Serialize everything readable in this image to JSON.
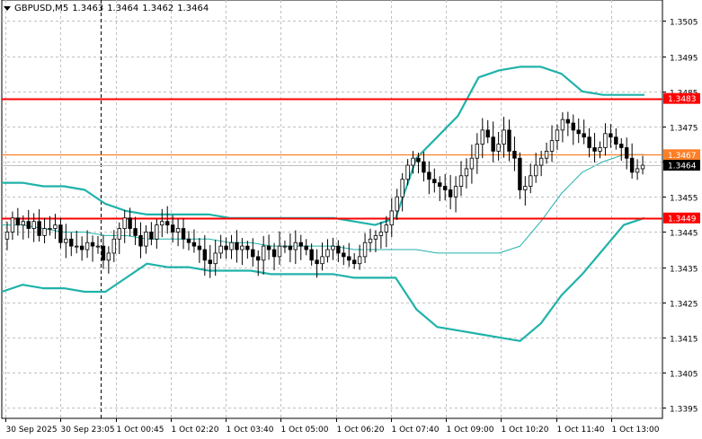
{
  "header": {
    "symbol": "GBPUSD,M5",
    "open": "1.3463",
    "high": "1.3464",
    "low": "1.3462",
    "close": "1.3464"
  },
  "colors": {
    "background": "#ffffff",
    "grid": "#c0c0c0",
    "candle": "#000000",
    "bands": "#20b2aa",
    "resistance_line": "#ff0000",
    "pivot_line": "#ff7f27",
    "current_price_line": "#c0c0c0",
    "axis_text": "#000000"
  },
  "chart_data": {
    "type": "candlestick",
    "symbol": "GBPUSD",
    "timeframe": "M5",
    "ylim": [
      1.3392,
      1.3511
    ],
    "y_ticks": [
      "1.3505",
      "1.3495",
      "1.3485",
      "1.3475",
      "1.3465",
      "1.3455",
      "1.3445",
      "1.3435",
      "1.3425",
      "1.3415",
      "1.3405",
      "1.3395"
    ],
    "x_ticks": [
      "30 Sep 2025",
      "30 Sep 23:05",
      "1 Oct 00:45",
      "1 Oct 02:20",
      "1 Oct 03:40",
      "1 Oct 05:00",
      "1 Oct 06:20",
      "1 Oct 07:40",
      "1 Oct 09:00",
      "1 Oct 10:20",
      "1 Oct 11:40",
      "1 Oct 13:00"
    ],
    "grid": true,
    "period_separator_at": "30 Sep 23:05",
    "levels": [
      {
        "label": "1.3483",
        "value": 1.3483,
        "color": "#ff0000"
      },
      {
        "label": "1.3467",
        "value": 1.3467,
        "color": "#ff7f27"
      },
      {
        "label": "1.3464",
        "value": 1.3464,
        "color": "#000000"
      },
      {
        "label": "1.3449",
        "value": 1.3449,
        "color": "#ff0000"
      }
    ],
    "close": [
      1.3445,
      1.3449,
      1.3447,
      1.3448,
      1.3446,
      1.3448,
      1.3444,
      1.3446,
      1.3446,
      1.3447,
      1.3442,
      1.3443,
      1.3441,
      1.3441,
      1.344,
      1.3442,
      1.3441,
      1.3441,
      1.3437,
      1.3439,
      1.3443,
      1.3446,
      1.3449,
      1.3446,
      1.3444,
      1.3441,
      1.3445,
      1.3443,
      1.3447,
      1.3448,
      1.3447,
      1.3445,
      1.3446,
      1.3443,
      1.3442,
      1.3441,
      1.344,
      1.3437,
      1.3436,
      1.3439,
      1.3441,
      1.344,
      1.3442,
      1.344,
      1.3441,
      1.344,
      1.3438,
      1.3437,
      1.3441,
      1.344,
      1.3438,
      1.3441,
      1.3441,
      1.344,
      1.3442,
      1.3441,
      1.344,
      1.3437,
      1.3436,
      1.3438,
      1.344,
      1.3441,
      1.3439,
      1.3438,
      1.3437,
      1.3436,
      1.3438,
      1.3442,
      1.3443,
      1.3444,
      1.3445,
      1.3447,
      1.3451,
      1.3455,
      1.346,
      1.3464,
      1.3466,
      1.3465,
      1.3462,
      1.346,
      1.3459,
      1.3458,
      1.3457,
      1.3455,
      1.3458,
      1.3461,
      1.3463,
      1.3466,
      1.347,
      1.3474,
      1.3472,
      1.3468,
      1.347,
      1.3474,
      1.3468,
      1.3466,
      1.3457,
      1.3458,
      1.3461,
      1.3464,
      1.3466,
      1.3468,
      1.3471,
      1.3474,
      1.3477,
      1.3476,
      1.3474,
      1.3473,
      1.3472,
      1.3469,
      1.3468,
      1.3469,
      1.3473,
      1.3472,
      1.347,
      1.3469,
      1.3466,
      1.3462,
      1.3463,
      1.3464
    ],
    "bollinger": {
      "middle": [
        1.3447,
        1.3447,
        1.3446,
        1.3445,
        1.3445,
        1.3444,
        1.3444,
        1.3443,
        1.3443,
        1.3443,
        1.3443,
        1.3442,
        1.3442,
        1.3441,
        1.3441,
        1.3441,
        1.3441,
        1.344,
        1.344,
        1.344,
        1.344,
        1.3439,
        1.3439,
        1.3439,
        1.3439,
        1.3441,
        1.3448,
        1.3456,
        1.3462,
        1.3465,
        1.3467,
        1.3467
      ],
      "upper": [
        1.3459,
        1.3459,
        1.3458,
        1.3458,
        1.3457,
        1.3453,
        1.3451,
        1.345,
        1.345,
        1.345,
        1.345,
        1.3449,
        1.3449,
        1.3449,
        1.3449,
        1.3449,
        1.3449,
        1.3448,
        1.3447,
        1.3449,
        1.3466,
        1.3472,
        1.3478,
        1.3489,
        1.3491,
        1.3492,
        1.3492,
        1.349,
        1.3485,
        1.3484,
        1.3484,
        1.3484
      ],
      "lower": [
        1.3428,
        1.343,
        1.3429,
        1.3429,
        1.3428,
        1.3428,
        1.3432,
        1.3436,
        1.3435,
        1.3435,
        1.3434,
        1.3434,
        1.3434,
        1.3433,
        1.3433,
        1.3433,
        1.3433,
        1.3432,
        1.3432,
        1.3432,
        1.3423,
        1.3418,
        1.3417,
        1.3416,
        1.3415,
        1.3414,
        1.3419,
        1.3427,
        1.3433,
        1.344,
        1.3447,
        1.3449
      ]
    }
  }
}
